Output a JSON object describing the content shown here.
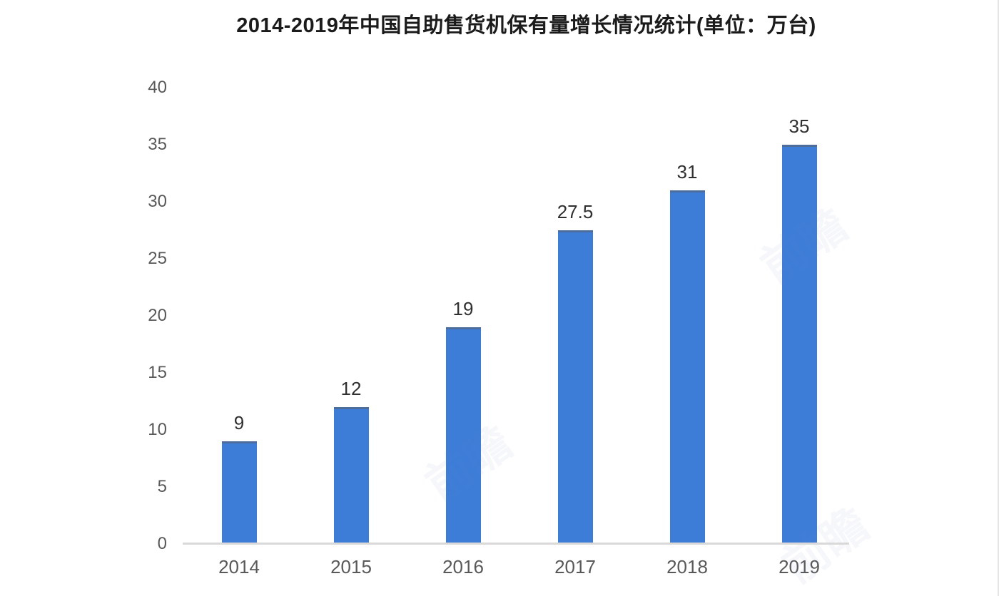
{
  "chart_data": {
    "type": "bar",
    "title": "2014-2019年中国自助售货机保有量增长情况统计(单位：万台)",
    "categories": [
      "2014",
      "2015",
      "2016",
      "2017",
      "2018",
      "2019"
    ],
    "values": [
      9,
      12,
      19,
      27.5,
      31,
      35
    ],
    "value_labels": [
      "9",
      "12",
      "19",
      "27.5",
      "31",
      "35"
    ],
    "xlabel": "",
    "ylabel": "",
    "ylim": [
      0,
      40
    ],
    "yticks": [
      0,
      5,
      10,
      15,
      20,
      25,
      30,
      35,
      40
    ],
    "grid": false,
    "legend_position": "none",
    "bar_color": "#3d7dd8",
    "bar_top_edge_color": "#4d6e9d",
    "axis_line_color": "#d9d9d9",
    "title_color": "#1b1b1b",
    "tick_label_color": "#595959",
    "value_label_color": "#303030",
    "watermark_text": "前瞻"
  }
}
